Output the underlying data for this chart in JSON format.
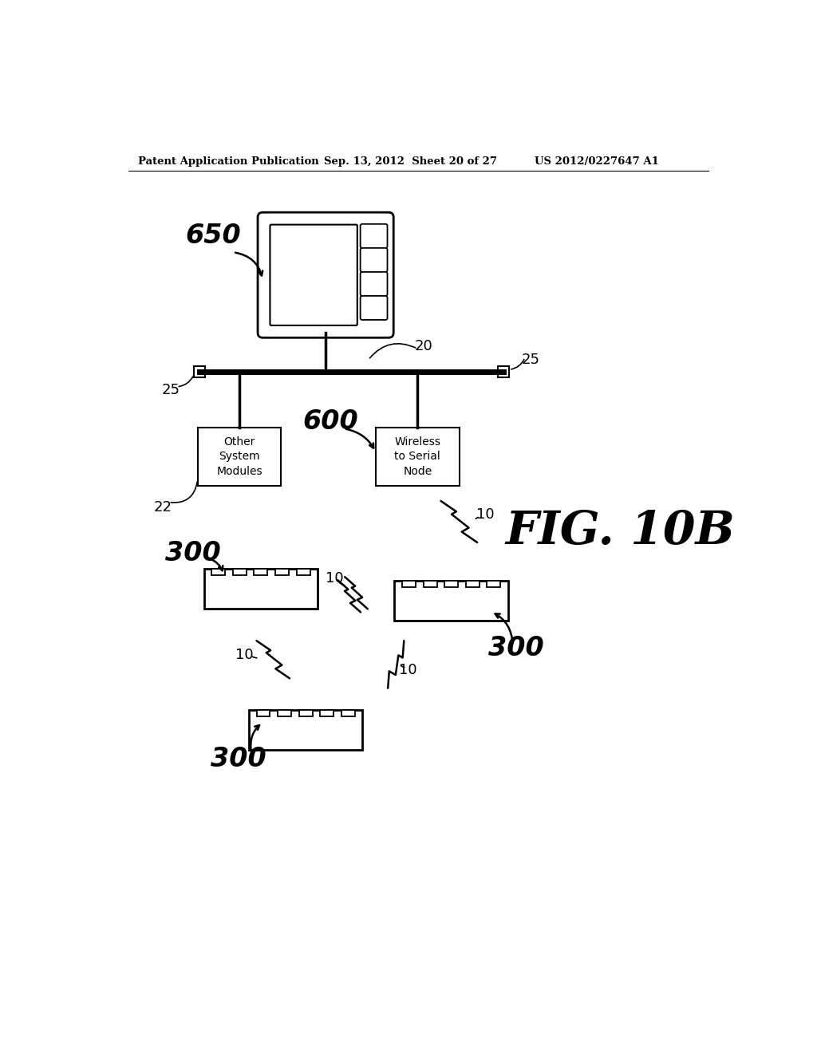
{
  "bg_color": "#ffffff",
  "header_left": "Patent Application Publication",
  "header_center": "Sep. 13, 2012  Sheet 20 of 27",
  "header_right": "US 2012/0227647 A1",
  "fig_label": "FIG. 10B"
}
